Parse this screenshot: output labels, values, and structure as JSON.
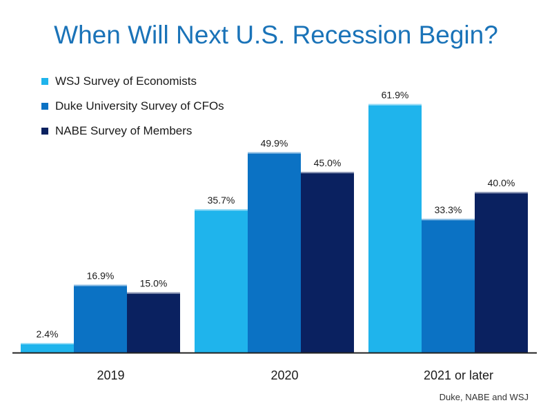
{
  "chart_data": {
    "type": "bar",
    "title": "When Will Next U.S. Recession Begin?",
    "categories": [
      "2019",
      "2020",
      "2021 or later"
    ],
    "series": [
      {
        "name": "WSJ Survey of Economists",
        "values": [
          2.4,
          35.7,
          61.9
        ],
        "labels": [
          "2.4%",
          "35.7%",
          "61.9%"
        ],
        "color": "#1fb4ec"
      },
      {
        "name": "Duke University Survey of CFOs",
        "values": [
          16.9,
          49.9,
          33.3
        ],
        "labels": [
          "16.9%",
          "49.9%",
          "33.3%"
        ],
        "color": "#0b72c4"
      },
      {
        "name": "NABE Survey of Members",
        "values": [
          15.0,
          45.0,
          40.0
        ],
        "labels": [
          "15.0%",
          "45.0%",
          "40.0%"
        ],
        "color": "#0a2160"
      }
    ],
    "ylim": [
      0,
      100
    ],
    "grid": false,
    "legend_position": "top-left"
  },
  "source": "Duke, NABE and WSJ"
}
